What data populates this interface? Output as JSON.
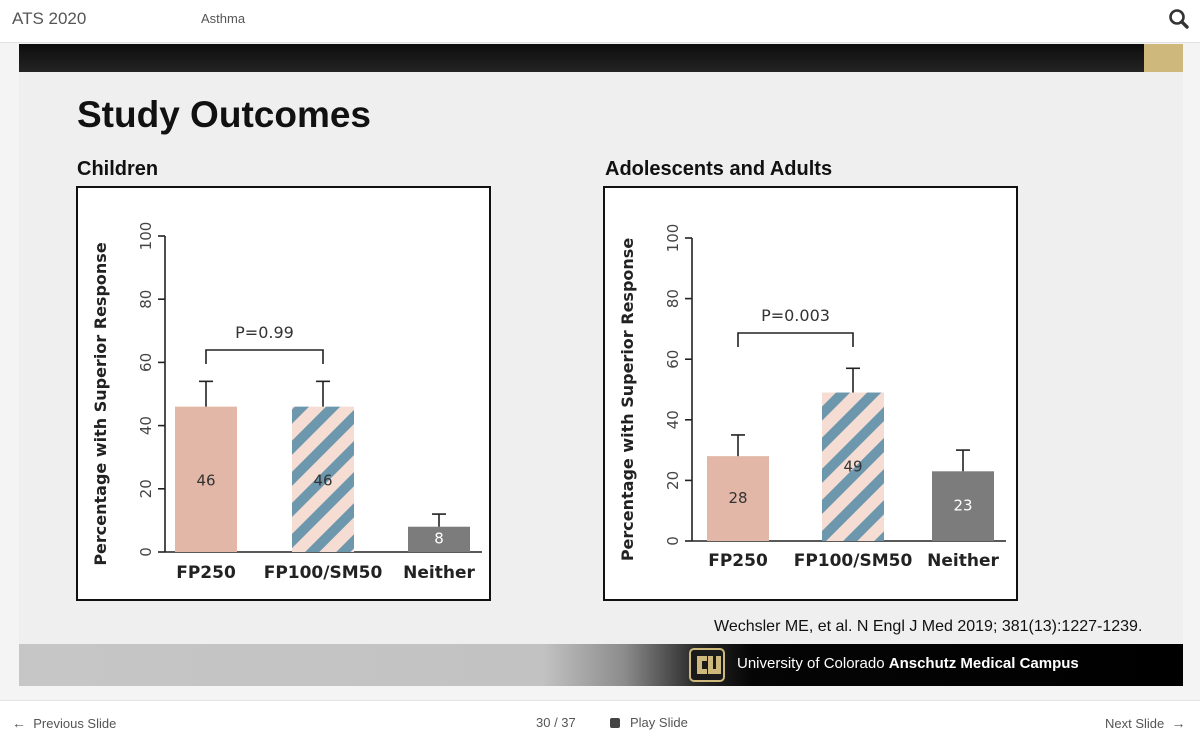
{
  "app": {
    "title": "ATS 2020",
    "section": "Asthma"
  },
  "icons": {
    "search": "search-icon",
    "prev": "arrow-left-icon",
    "next": "arrow-right-icon",
    "play": "stop-square-icon",
    "logo": "cu-logo-icon"
  },
  "slide": {
    "title": "Study Outcomes",
    "children_heading": "Children",
    "adults_heading": "Adolescents and Adults",
    "citation": "Wechsler ME, et al. N Engl J Med 2019; 381(13):1227-1239.",
    "footer": {
      "university": "University of Colorado ",
      "campus": "Anschutz Medical Campus"
    }
  },
  "colors": {
    "fp250": "#e2b7a7",
    "stripe_blue": "#6d97ad",
    "stripe_pink": "#f6ddd3",
    "neither": "#7c7c7c",
    "gold": "#cfb87c"
  },
  "chart_data": [
    {
      "type": "bar",
      "ylabel": "Percentage with Superior Response",
      "ylim": [
        0,
        100
      ],
      "yticks": [
        "0",
        "20",
        "40",
        "60",
        "80",
        "100"
      ],
      "categories": [
        "FP250",
        "FP100/SM50",
        "Neither"
      ],
      "values": [
        46,
        46,
        8
      ],
      "data_labels": [
        "46",
        "46",
        "8"
      ],
      "error_upper": [
        54,
        54,
        12
      ],
      "annotation": "P=0.99"
    },
    {
      "type": "bar",
      "ylabel": "Percentage with Superior Response",
      "ylim": [
        0,
        100
      ],
      "yticks": [
        "0",
        "20",
        "40",
        "60",
        "80",
        "100"
      ],
      "categories": [
        "FP250",
        "FP100/SM50",
        "Neither"
      ],
      "values": [
        28,
        49,
        23
      ],
      "data_labels": [
        "28",
        "49",
        "23"
      ],
      "error_upper": [
        35,
        57,
        30
      ],
      "annotation": "P=0.003"
    }
  ],
  "nav": {
    "prev": "Previous Slide",
    "page": "30 / 37",
    "play": "Play Slide",
    "next": "Next Slide"
  }
}
